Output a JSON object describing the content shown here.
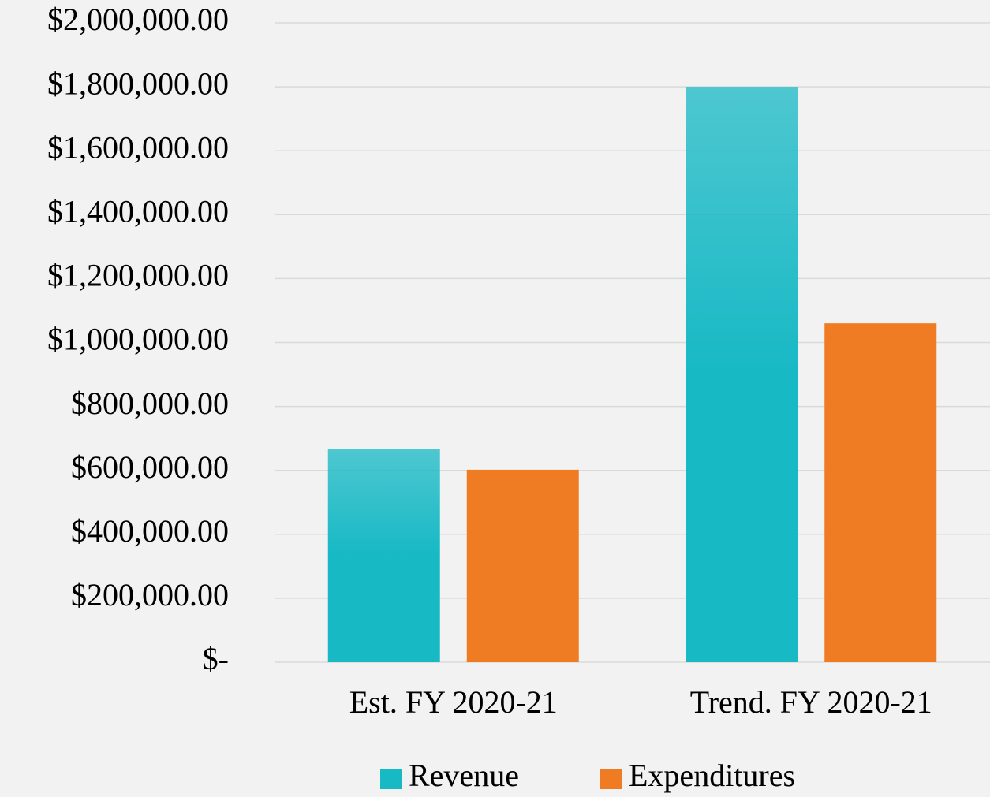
{
  "chart_data": {
    "type": "bar",
    "categories": [
      "Est. FY 2020-21",
      "Trend. FY 2020-21"
    ],
    "series": [
      {
        "name": "Revenue",
        "color": "#17b9c5",
        "values": [
          668000,
          1800000
        ]
      },
      {
        "name": "Expenditures",
        "color": "#ef7b22",
        "values": [
          602000,
          1060000
        ]
      }
    ],
    "ylim": [
      0,
      2000000
    ],
    "yticks": [
      {
        "value": 0,
        "label": "$-"
      },
      {
        "value": 200000,
        "label": "$200,000.00"
      },
      {
        "value": 400000,
        "label": "$400,000.00"
      },
      {
        "value": 600000,
        "label": "$600,000.00"
      },
      {
        "value": 800000,
        "label": "$800,000.00"
      },
      {
        "value": 1000000,
        "label": "$1,000,000.00"
      },
      {
        "value": 1200000,
        "label": "$1,200,000.00"
      },
      {
        "value": 1400000,
        "label": "$1,400,000.00"
      },
      {
        "value": 1600000,
        "label": "$1,600,000.00"
      },
      {
        "value": 1800000,
        "label": "$1,800,000.00"
      },
      {
        "value": 2000000,
        "label": "$2,000,000.00"
      }
    ],
    "grid": true,
    "legend": "bottom"
  }
}
